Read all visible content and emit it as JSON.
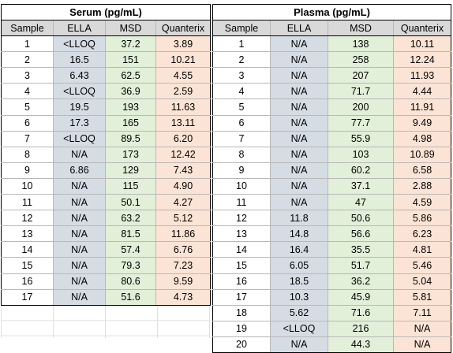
{
  "serum": {
    "title": "Serum (pg/mL)",
    "headers": [
      "Sample",
      "ELLA",
      "MSD",
      "Quanterix"
    ],
    "rows": [
      [
        "1",
        "<LLOQ",
        "37.2",
        "3.89"
      ],
      [
        "2",
        "16.5",
        "151",
        "10.21"
      ],
      [
        "3",
        "6.43",
        "62.5",
        "4.55"
      ],
      [
        "4",
        "<LLOQ",
        "36.9",
        "2.59"
      ],
      [
        "5",
        "19.5",
        "193",
        "11.63"
      ],
      [
        "6",
        "17.3",
        "165",
        "13.11"
      ],
      [
        "7",
        "<LLOQ",
        "89.5",
        "6.20"
      ],
      [
        "8",
        "N/A",
        "173",
        "12.42"
      ],
      [
        "9",
        "6.86",
        "129",
        "7.43"
      ],
      [
        "10",
        "N/A",
        "115",
        "4.90"
      ],
      [
        "11",
        "N/A",
        "50.1",
        "4.27"
      ],
      [
        "12",
        "N/A",
        "63.2",
        "5.12"
      ],
      [
        "13",
        "N/A",
        "81.5",
        "11.86"
      ],
      [
        "14",
        "N/A",
        "57.4",
        "6.76"
      ],
      [
        "15",
        "N/A",
        "79.3",
        "7.23"
      ],
      [
        "16",
        "N/A",
        "80.6",
        "9.59"
      ],
      [
        "17",
        "N/A",
        "51.6",
        "4.73"
      ]
    ]
  },
  "plasma": {
    "title": "Plasma (pg/mL)",
    "headers": [
      "Sample",
      "ELLA",
      "MSD",
      "Quanterix"
    ],
    "rows": [
      [
        "1",
        "N/A",
        "138",
        "10.11"
      ],
      [
        "2",
        "N/A",
        "258",
        "12.24"
      ],
      [
        "3",
        "N/A",
        "207",
        "11.93"
      ],
      [
        "4",
        "N/A",
        "71.7",
        "4.44"
      ],
      [
        "5",
        "N/A",
        "200",
        "11.91"
      ],
      [
        "6",
        "N/A",
        "77.7",
        "9.49"
      ],
      [
        "7",
        "N/A",
        "55.9",
        "4.98"
      ],
      [
        "8",
        "N/A",
        "103",
        "10.89"
      ],
      [
        "9",
        "N/A",
        "60.2",
        "6.58"
      ],
      [
        "10",
        "N/A",
        "37.1",
        "2.88"
      ],
      [
        "11",
        "N/A",
        "47",
        "4.59"
      ],
      [
        "12",
        "11.8",
        "50.6",
        "5.86"
      ],
      [
        "13",
        "14.8",
        "56.6",
        "6.23"
      ],
      [
        "14",
        "16.4",
        "35.5",
        "4.81"
      ],
      [
        "15",
        "6.05",
        "51.7",
        "5.46"
      ],
      [
        "16",
        "18.5",
        "36.2",
        "5.04"
      ],
      [
        "17",
        "10.3",
        "45.9",
        "5.81"
      ],
      [
        "18",
        "5.62",
        "71.6",
        "7.11"
      ],
      [
        "19",
        "<LLOQ",
        "216",
        "N/A"
      ],
      [
        "20",
        "N/A",
        "44.3",
        "N/A"
      ]
    ]
  }
}
